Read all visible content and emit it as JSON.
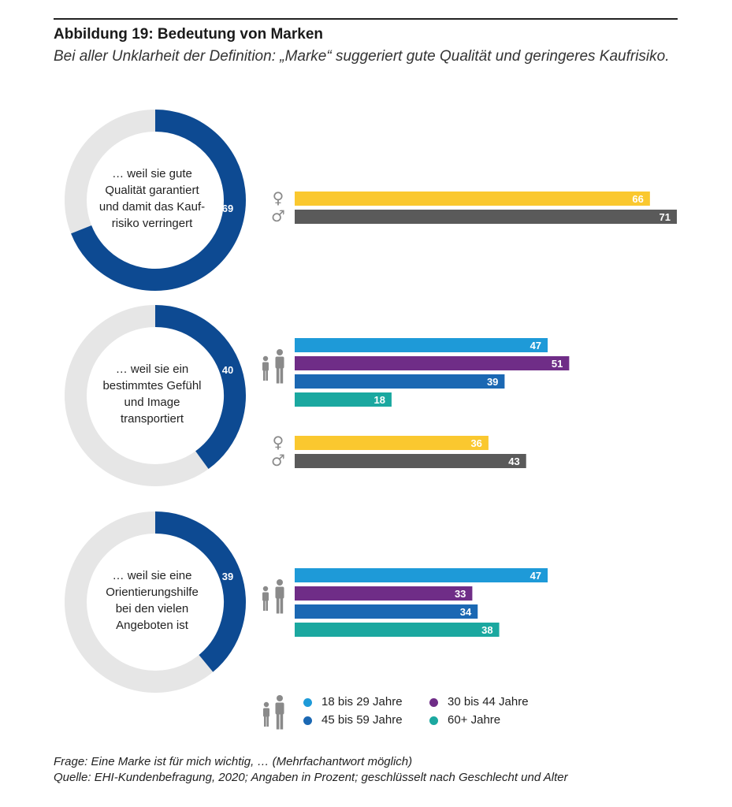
{
  "figure": {
    "title": "Abbildung 19: Bedeutung von Marken",
    "subtitle": "Bei aller Unklarheit der Definition: „Marke“ suggeriert gute Qualität und geringeres Kaufrisiko."
  },
  "colors": {
    "donut_fill": "#0d4a92",
    "donut_track": "#e6e6e6",
    "female": "#fac82f",
    "male": "#5a5a5a",
    "age_18_29": "#1e9ad8",
    "age_30_44": "#6f2d87",
    "age_45_59": "#1b68b3",
    "age_60_plus": "#1ba8a0",
    "icon_gray": "#8a8a8a"
  },
  "chart_data": [
    {
      "type": "bar",
      "donut": {
        "value": 69,
        "label": "… weil sie gute Qualität garantiert und damit das Kaufrisiko verringert",
        "label_lines": [
          "… weil sie gute",
          "Qualität garantiert",
          "und damit das Kauf-",
          "risiko verringert"
        ]
      },
      "gender": {
        "categories": [
          "♀",
          "♂"
        ],
        "values": [
          66,
          71
        ]
      },
      "age": null,
      "xlim": [
        0,
        71
      ]
    },
    {
      "type": "bar",
      "donut": {
        "value": 40,
        "label": "… weil sie ein bestimmtes Gefühl und Image transportiert",
        "label_lines": [
          "… weil sie ein",
          "bestimmtes Gefühl",
          "und Image",
          "transportiert"
        ]
      },
      "age": {
        "categories": [
          "18 bis 29 Jahre",
          "30 bis 44 Jahre",
          "45 bis 59 Jahre",
          "60+ Jahre"
        ],
        "values": [
          47,
          51,
          39,
          18
        ]
      },
      "gender": {
        "categories": [
          "♀",
          "♂"
        ],
        "values": [
          36,
          43
        ]
      },
      "xlim": [
        0,
        71
      ]
    },
    {
      "type": "bar",
      "donut": {
        "value": 39,
        "label": "… weil sie eine Orientierungshilfe bei den vielen Angeboten ist",
        "label_lines": [
          "… weil sie eine",
          "Orientierungshilfe",
          "bei den vielen",
          "Angeboten ist"
        ]
      },
      "age": {
        "categories": [
          "18 bis 29 Jahre",
          "30 bis 44 Jahre",
          "45 bis 59 Jahre",
          "60+ Jahre"
        ],
        "values": [
          47,
          33,
          34,
          38
        ]
      },
      "gender": null,
      "xlim": [
        0,
        71
      ]
    }
  ],
  "legend": {
    "items": [
      {
        "label": "18 bis 29 Jahre",
        "color_key": "age_18_29"
      },
      {
        "label": "30 bis 44 Jahre",
        "color_key": "age_30_44"
      },
      {
        "label": "45 bis 59 Jahre",
        "color_key": "age_45_59"
      },
      {
        "label": "60+ Jahre",
        "color_key": "age_60_plus"
      }
    ]
  },
  "footnotes": {
    "question": "Frage: Eine Marke ist für mich wichtig, … (Mehrfachantwort möglich)",
    "source": "Quelle: EHI-Kundenbefragung, 2020; Angaben in Prozent; geschlüsselt nach Geschlecht und Alter"
  }
}
